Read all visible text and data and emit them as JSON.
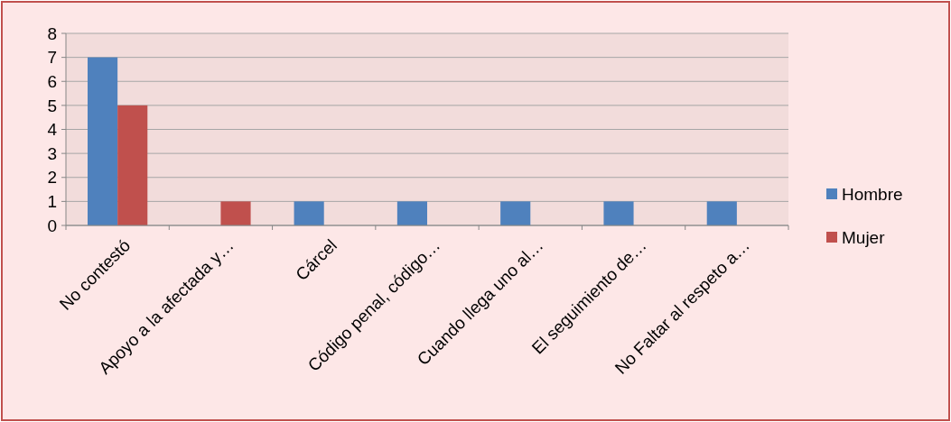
{
  "chart_data": {
    "type": "bar",
    "categories": [
      "No contestó",
      "Apoyo a la afectada y…",
      "Cárcel",
      "Código penal, código…",
      "Cuando llega uno al…",
      "El seguimiento de…",
      "No Faltar al respeto a…"
    ],
    "series": [
      {
        "name": "Hombre",
        "color": "#4f81bd",
        "values": [
          7,
          0,
          1,
          1,
          1,
          1,
          1
        ]
      },
      {
        "name": "Mujer",
        "color": "#c0504d",
        "values": [
          5,
          1,
          0,
          0,
          0,
          0,
          0
        ]
      }
    ],
    "ylim": [
      0,
      8
    ],
    "yticks": [
      0,
      1,
      2,
      3,
      4,
      5,
      6,
      7,
      8
    ],
    "grid": "y",
    "legend": "right"
  }
}
